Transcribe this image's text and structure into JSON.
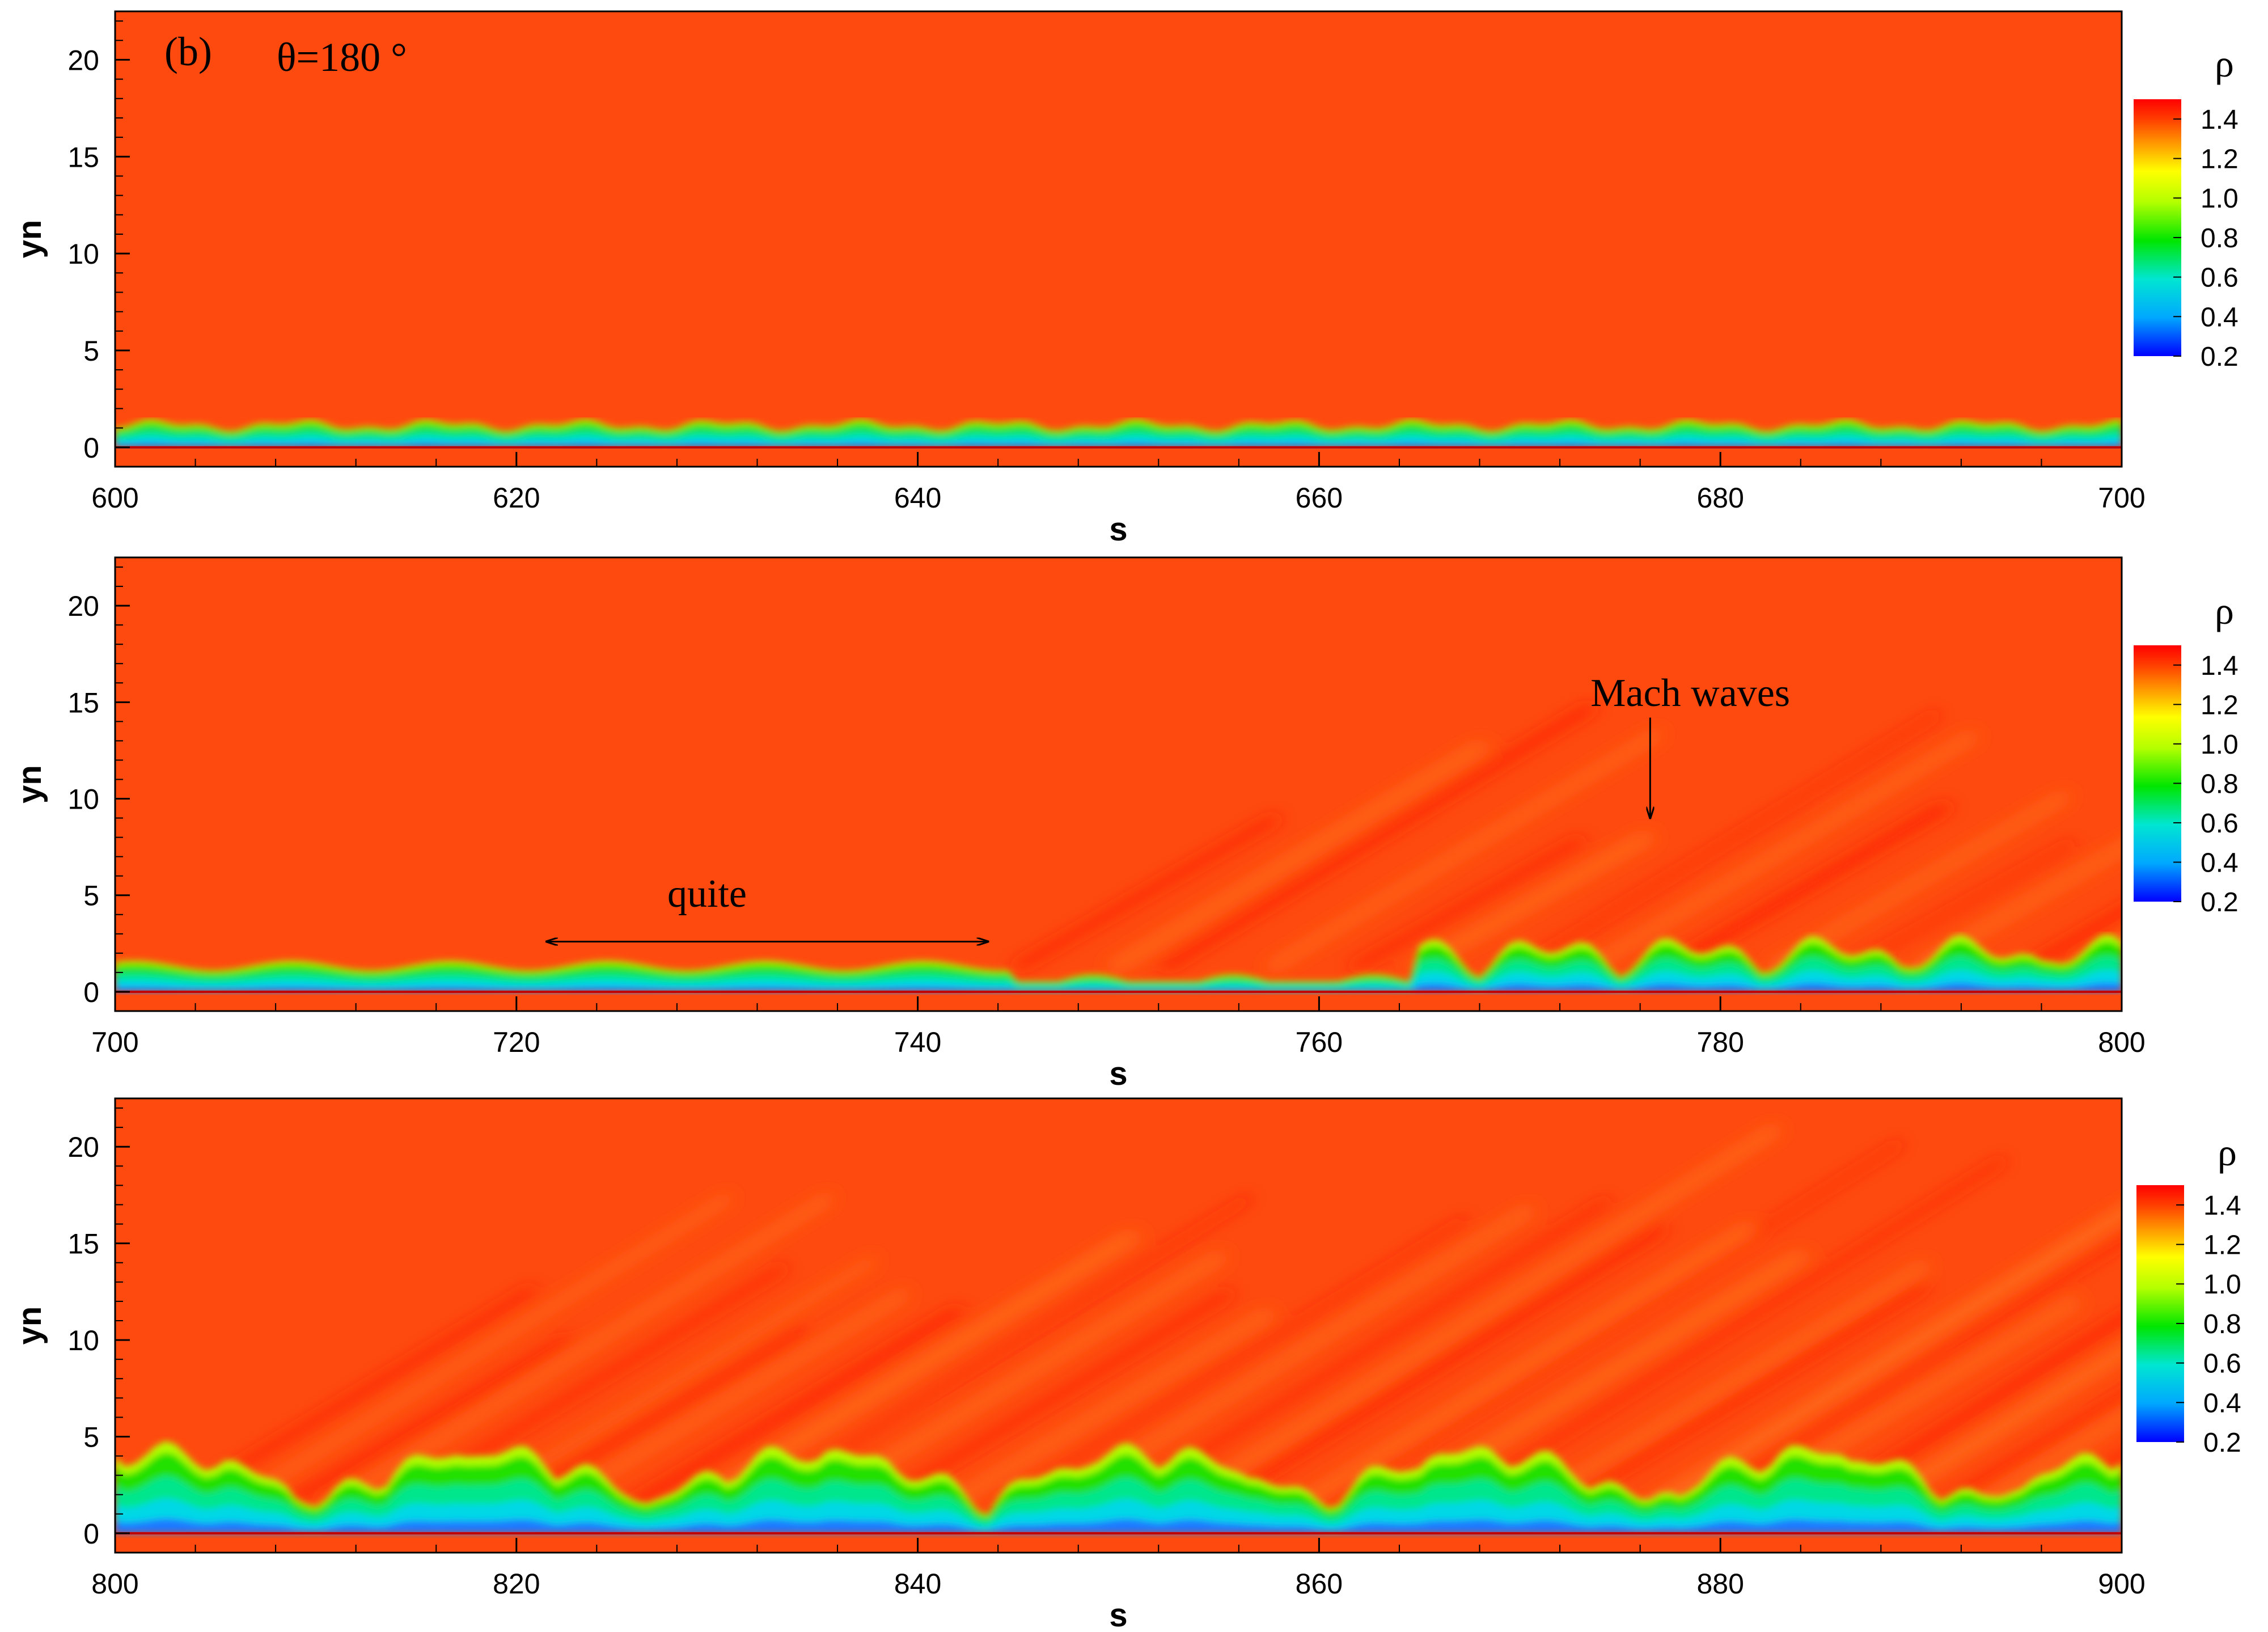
{
  "figure": {
    "panel_label": "(b)",
    "annotation": "θ=180 °"
  },
  "colors": {
    "colormap": [
      "#0000ff",
      "#00a8ff",
      "#00e6d2",
      "#00e600",
      "#b4ff00",
      "#ffff00",
      "#ffa000",
      "#ff4000",
      "#ff0000"
    ],
    "freestream": "#fe4a0e",
    "wall": "#c00000"
  },
  "colorbar": {
    "title": "ρ",
    "ticks": [
      "1.4",
      "1.2",
      "1.0",
      "0.8",
      "0.6",
      "0.4",
      "0.2"
    ],
    "min": 0.2,
    "max": 1.5
  },
  "chart_data": [
    {
      "type": "heatmap",
      "variable": "ρ",
      "xlabel": "s",
      "ylabel": "yn",
      "xlim": [
        600,
        700
      ],
      "ylim": [
        -1,
        22.5
      ],
      "x_ticks": [
        "600",
        "620",
        "640",
        "660",
        "680",
        "700"
      ],
      "y_ticks": [
        "0",
        "5",
        "10",
        "15",
        "20"
      ],
      "annotations": []
    },
    {
      "type": "heatmap",
      "variable": "ρ",
      "xlabel": "s",
      "ylabel": "yn",
      "xlim": [
        700,
        800
      ],
      "ylim": [
        -1,
        22.5
      ],
      "x_ticks": [
        "700",
        "720",
        "740",
        "760",
        "780",
        "800"
      ],
      "y_ticks": [
        "0",
        "5",
        "10",
        "15",
        "20"
      ],
      "annotations": [
        {
          "text": "quite",
          "arrow": "double",
          "from": [
            721.5,
            2.6
          ],
          "to": [
            743.5,
            2.6
          ],
          "label_at": [
            729.5,
            4.4
          ]
        },
        {
          "text": "Mach waves",
          "arrow": "single",
          "from": [
            776.5,
            14.2
          ],
          "to": [
            776.5,
            9.0
          ],
          "label_at": [
            778.5,
            14.8
          ]
        }
      ]
    },
    {
      "type": "heatmap",
      "variable": "ρ",
      "xlabel": "s",
      "ylabel": "yn",
      "xlim": [
        800,
        900
      ],
      "ylim": [
        -1,
        22.5
      ],
      "x_ticks": [
        "800",
        "820",
        "840",
        "860",
        "880",
        "900"
      ],
      "y_ticks": [
        "0",
        "5",
        "10",
        "15",
        "20"
      ],
      "annotations": []
    }
  ]
}
